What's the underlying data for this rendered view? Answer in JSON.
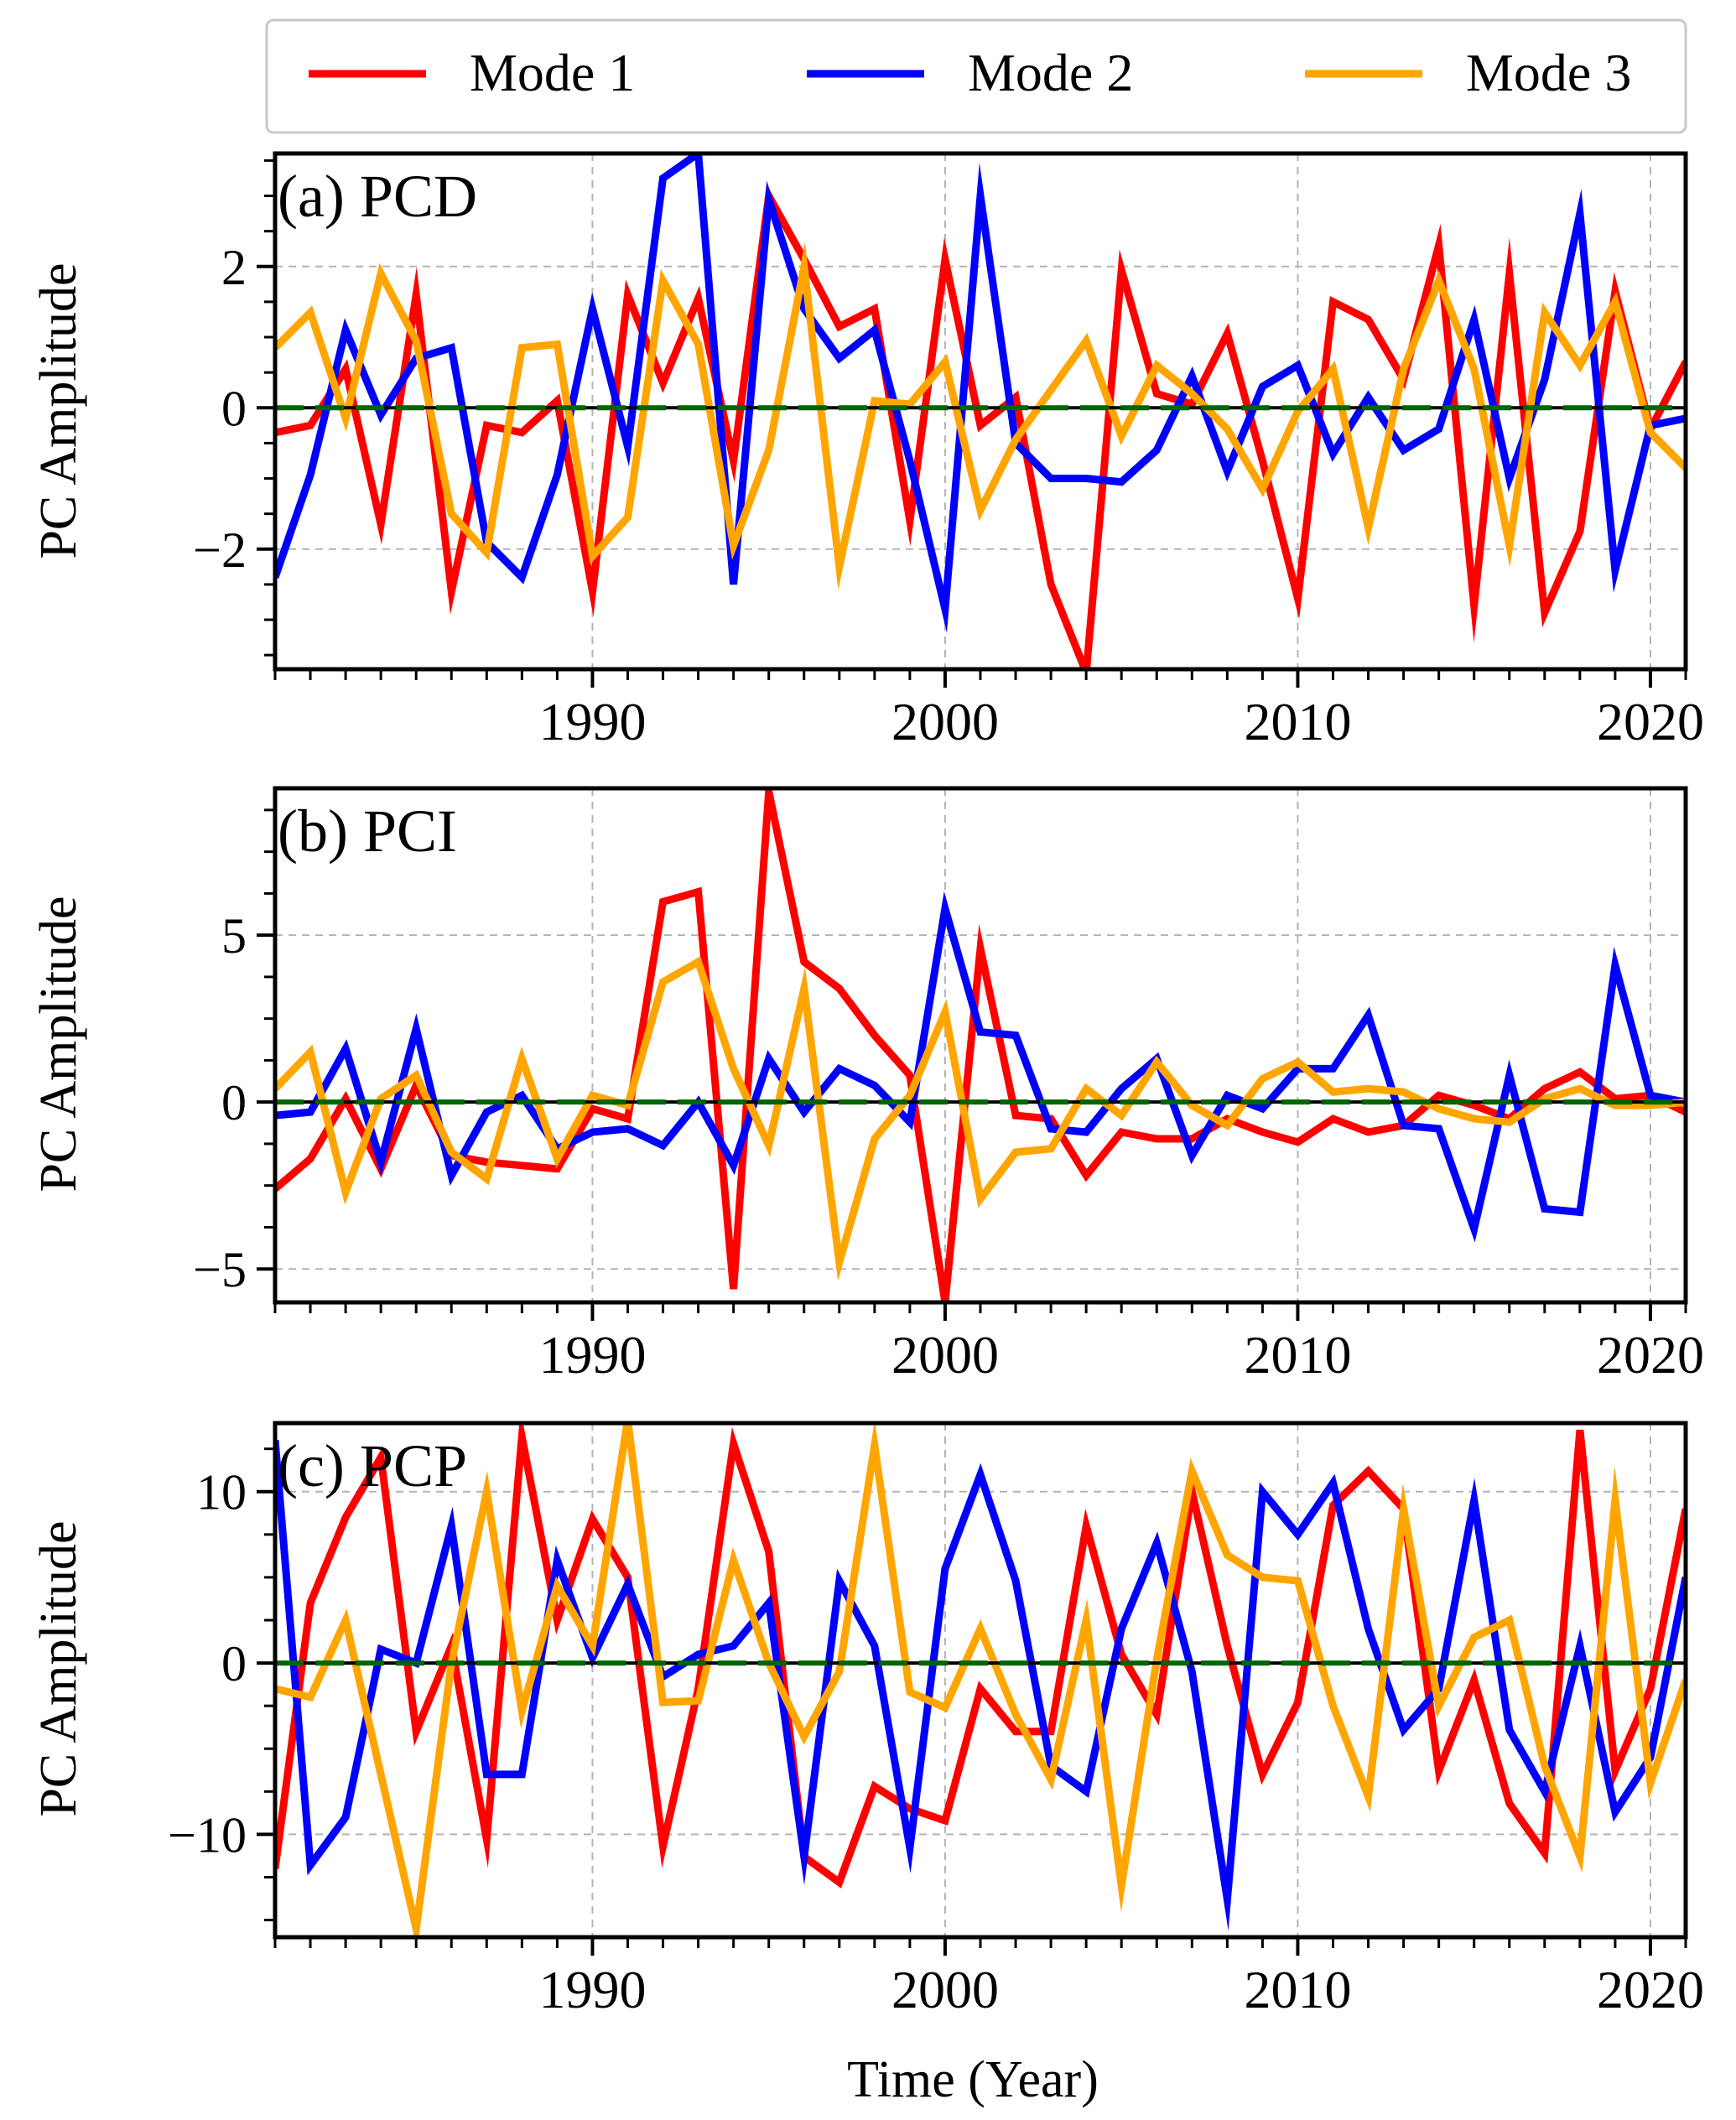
{
  "figure": {
    "xlabel": "Time (Year)",
    "ylabel": "PC Amplitude",
    "legend": {
      "placement": "top-center",
      "entries": [
        {
          "label": "Mode 1",
          "color": "#ff0000"
        },
        {
          "label": "Mode 2",
          "color": "#0000ff"
        },
        {
          "label": "Mode 3",
          "color": "#ffa500"
        }
      ]
    }
  },
  "chart_data": [
    {
      "type": "line",
      "panel_label": "(a) PCD",
      "xlim": [
        1981,
        2021
      ],
      "ylim": [
        -3.7,
        3.6
      ],
      "x_ticks": [
        1990,
        2000,
        2010,
        2020
      ],
      "y_ticks": [
        -2,
        0,
        2
      ],
      "y_tick_labels": [
        "−2",
        "0",
        "2"
      ],
      "grid": true,
      "zero_line_color": "#006400",
      "x": [
        1981,
        1982,
        1983,
        1984,
        1985,
        1986,
        1987,
        1988,
        1989,
        1990,
        1991,
        1992,
        1993,
        1994,
        1995,
        1996,
        1997,
        1998,
        1999,
        2000,
        2001,
        2002,
        2003,
        2004,
        2005,
        2006,
        2007,
        2008,
        2009,
        2010,
        2011,
        2012,
        2013,
        2014,
        2015,
        2016,
        2017,
        2018,
        2019,
        2020,
        2021
      ],
      "series": [
        {
          "name": "Mode 1",
          "color": "#ff0000",
          "values": [
            -0.35,
            -0.25,
            0.55,
            -1.65,
            1.6,
            -2.6,
            -0.25,
            -0.35,
            0.1,
            -2.6,
            1.6,
            0.35,
            1.55,
            -0.75,
            3.0,
            2.1,
            1.15,
            1.4,
            -1.6,
            2.1,
            -0.25,
            0.15,
            -2.5,
            -3.75,
            1.95,
            0.2,
            0.05,
            1.05,
            -0.75,
            -2.7,
            1.5,
            1.25,
            0.4,
            2.3,
            -2.8,
            1.9,
            -2.9,
            -1.75,
            1.65,
            -0.3,
            0.65
          ]
        },
        {
          "name": "Mode 2",
          "color": "#0000ff",
          "values": [
            -2.4,
            -0.95,
            1.1,
            -0.1,
            0.7,
            0.85,
            -1.9,
            -2.4,
            -0.95,
            1.4,
            -0.55,
            3.25,
            3.6,
            -2.5,
            2.95,
            1.4,
            0.7,
            1.1,
            -0.75,
            -2.85,
            3.0,
            -0.5,
            -1.0,
            -1.0,
            -1.05,
            -0.6,
            0.45,
            -0.9,
            0.3,
            0.6,
            -0.65,
            0.15,
            -0.6,
            -0.3,
            1.25,
            -1.0,
            0.4,
            2.75,
            -2.3,
            -0.25,
            -0.15
          ]
        },
        {
          "name": "Mode 3",
          "color": "#ffa500",
          "values": [
            0.85,
            1.35,
            -0.15,
            1.9,
            0.95,
            -1.5,
            -2.05,
            0.85,
            0.9,
            -2.1,
            -1.55,
            1.8,
            0.9,
            -1.95,
            -0.6,
            2.0,
            -2.25,
            0.1,
            0.05,
            0.65,
            -1.45,
            -0.45,
            0.25,
            0.95,
            -0.4,
            0.6,
            0.2,
            -0.3,
            -1.15,
            -0.05,
            0.55,
            -1.7,
            0.55,
            1.8,
            0.55,
            -1.95,
            1.35,
            0.6,
            1.5,
            -0.35,
            -0.85
          ]
        }
      ]
    },
    {
      "type": "line",
      "panel_label": "(b) PCI",
      "xlim": [
        1981,
        2021
      ],
      "ylim": [
        -6,
        9.4
      ],
      "x_ticks": [
        1990,
        2000,
        2010,
        2020
      ],
      "y_ticks": [
        -5,
        0,
        5
      ],
      "y_tick_labels": [
        "−5",
        "0",
        "5"
      ],
      "grid": true,
      "zero_line_color": "#006400",
      "x": [
        1981,
        1982,
        1983,
        1984,
        1985,
        1986,
        1987,
        1988,
        1989,
        1990,
        1991,
        1992,
        1993,
        1994,
        1995,
        1996,
        1997,
        1998,
        1999,
        2000,
        2001,
        2002,
        2003,
        2004,
        2005,
        2006,
        2007,
        2008,
        2009,
        2010,
        2011,
        2012,
        2013,
        2014,
        2015,
        2016,
        2017,
        2018,
        2019,
        2020,
        2021
      ],
      "series": [
        {
          "name": "Mode 1",
          "color": "#ff0000",
          "values": [
            -2.6,
            -1.7,
            0.1,
            -2.0,
            0.5,
            -1.6,
            -1.8,
            -1.9,
            -2.0,
            -0.2,
            -0.5,
            6.0,
            6.3,
            -5.6,
            9.3,
            4.2,
            3.4,
            2.0,
            0.8,
            -6.0,
            4.6,
            -0.4,
            -0.5,
            -2.2,
            -0.9,
            -1.1,
            -1.1,
            -0.5,
            -0.9,
            -1.2,
            -0.5,
            -0.9,
            -0.7,
            0.2,
            -0.1,
            -0.5,
            0.4,
            0.9,
            0.1,
            0.2,
            -0.3
          ]
        },
        {
          "name": "Mode 2",
          "color": "#0000ff",
          "values": [
            -0.4,
            -0.3,
            1.6,
            -1.8,
            2.2,
            -2.2,
            -0.3,
            0.2,
            -1.4,
            -0.9,
            -0.8,
            -1.3,
            0.0,
            -1.9,
            1.3,
            -0.3,
            1.0,
            0.5,
            -0.6,
            5.8,
            2.1,
            2.0,
            -0.8,
            -0.9,
            0.4,
            1.3,
            -1.6,
            0.2,
            -0.2,
            1.0,
            1.0,
            2.6,
            -0.7,
            -0.8,
            -3.8,
            0.8,
            -3.2,
            -3.3,
            4.1,
            0.2,
            0.0
          ]
        },
        {
          "name": "Mode 3",
          "color": "#ffa500",
          "values": [
            0.4,
            1.5,
            -2.7,
            0.1,
            0.8,
            -1.5,
            -2.3,
            1.3,
            -1.7,
            0.2,
            -0.1,
            3.6,
            4.2,
            1.0,
            -1.3,
            3.4,
            -4.8,
            -1.1,
            0.2,
            2.7,
            -2.9,
            -1.5,
            -1.4,
            0.4,
            -0.4,
            1.2,
            -0.1,
            -0.7,
            0.7,
            1.2,
            0.3,
            0.4,
            0.3,
            -0.2,
            -0.5,
            -0.6,
            0.1,
            0.4,
            -0.1,
            -0.1,
            0.0
          ]
        }
      ]
    },
    {
      "type": "line",
      "panel_label": "(c) PCP",
      "xlim": [
        1981,
        2021
      ],
      "ylim": [
        -16,
        14
      ],
      "x_ticks": [
        1990,
        2000,
        2010,
        2020
      ],
      "y_ticks": [
        -10,
        0,
        10
      ],
      "y_tick_labels": [
        "−10",
        "0",
        "10"
      ],
      "grid": true,
      "zero_line_color": "#006400",
      "x": [
        1981,
        1982,
        1983,
        1984,
        1985,
        1986,
        1987,
        1988,
        1989,
        1990,
        1991,
        1992,
        1993,
        1994,
        1995,
        1996,
        1997,
        1998,
        1999,
        2000,
        2001,
        2002,
        2003,
        2004,
        2005,
        2006,
        2007,
        2008,
        2009,
        2010,
        2011,
        2012,
        2013,
        2014,
        2015,
        2016,
        2017,
        2018,
        2019,
        2020,
        2021
      ],
      "series": [
        {
          "name": "Mode 1",
          "color": "#ff0000",
          "values": [
            -12.0,
            3.5,
            8.5,
            12.0,
            -4.0,
            1.0,
            -10.3,
            13.2,
            2.5,
            8.4,
            5.0,
            -10.7,
            -1.5,
            12.8,
            6.5,
            -11.3,
            -12.8,
            -7.2,
            -8.5,
            -9.2,
            -1.5,
            -4.0,
            -4.0,
            8.0,
            0.5,
            -3.0,
            10.0,
            1.0,
            -6.5,
            -2.3,
            9.2,
            11.2,
            9.0,
            -6.3,
            -1.0,
            -8.2,
            -11.1,
            13.6,
            -6.3,
            -1.5,
            9.0
          ]
        },
        {
          "name": "Mode 2",
          "color": "#0000ff",
          "values": [
            13.0,
            -11.8,
            -9.0,
            0.8,
            0.0,
            8.0,
            -6.5,
            -6.5,
            6.0,
            0.3,
            4.6,
            -0.8,
            0.5,
            1.0,
            3.5,
            -11.3,
            4.8,
            1.0,
            -10.8,
            5.5,
            11.0,
            4.8,
            -6.0,
            -7.5,
            2.0,
            7.0,
            -0.5,
            -13.8,
            10.0,
            7.5,
            10.5,
            2.0,
            -3.9,
            -1.5,
            9.5,
            -3.9,
            -7.5,
            1.0,
            -8.7,
            -5.5,
            5.0
          ]
        },
        {
          "name": "Mode 3",
          "color": "#ffa500",
          "values": [
            -1.5,
            -2.0,
            2.5,
            -6.5,
            -15.5,
            0.0,
            10.0,
            -2.8,
            4.5,
            1.0,
            14.2,
            -2.3,
            -2.2,
            6.0,
            0.0,
            -4.3,
            -0.5,
            12.7,
            -1.7,
            -2.6,
            2.0,
            -3.0,
            -6.8,
            2.5,
            -13.0,
            0.2,
            11.2,
            6.3,
            5.0,
            4.8,
            -2.5,
            -7.8,
            9.0,
            -2.5,
            1.5,
            2.5,
            -6.0,
            -11.3,
            9.5,
            -7.0,
            -1.0
          ]
        }
      ]
    }
  ]
}
